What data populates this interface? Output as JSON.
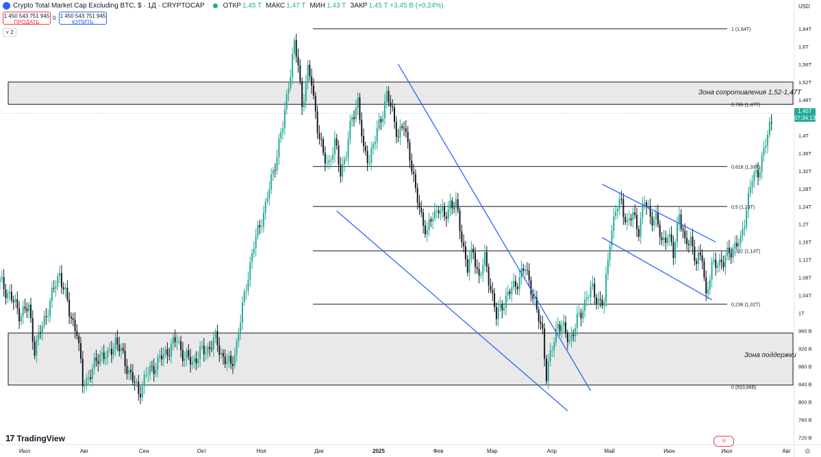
{
  "header": {
    "title": "Crypto Total Market Cap Excluding BTC, $ · 1Д · CRYPTOCAP",
    "ohlc": [
      {
        "key": "ОТКР",
        "value": "1,45 T"
      },
      {
        "key": "МАКС",
        "value": "1,47 T"
      },
      {
        "key": "МИН",
        "value": "1,43 T"
      },
      {
        "key": "ЗАКР",
        "value": "1,45 T +3,45 B (+0,24%)"
      }
    ],
    "sell_price": "1 450 543 751 945",
    "sell_label": "ПРОДАТЬ",
    "spread": "0",
    "buy_price": "1 450 543 751 945",
    "buy_label": "КУПИТЬ",
    "indicator_count": "2",
    "currency": "USD"
  },
  "current_price": {
    "value": "1,45T",
    "countdown": "07:34:13"
  },
  "brand": "TradingView",
  "colors": {
    "up": "#22ab94",
    "down": "#131722",
    "trendline": "#2962ff",
    "fib": "#131722",
    "zone_fill": "#e0e0e0"
  },
  "chart_data": {
    "type": "candlestick",
    "title": "Crypto Total Market Cap Excluding BTC, $ · 1Д · CRYPTOCAP",
    "y_unit": "USD",
    "y_ticks": [
      "1,64T",
      "1,6T",
      "1,56T",
      "1,52T",
      "1,48T",
      "1,44T",
      "1,4T",
      "1,36T",
      "1,32T",
      "1,28T",
      "1,24T",
      "1,2T",
      "1,16T",
      "1,12T",
      "1,08T",
      "1,04T",
      "1T",
      "960 B",
      "920 B",
      "880 B",
      "840 B",
      "800 B",
      "760 B",
      "720 B"
    ],
    "y_tick_values": [
      1640,
      1600,
      1560,
      1520,
      1480,
      1440,
      1400,
      1360,
      1320,
      1280,
      1240,
      1200,
      1160,
      1120,
      1080,
      1040,
      1000,
      960,
      920,
      880,
      840,
      800,
      760,
      720
    ],
    "x_ticks": [
      "Июл",
      "Авг",
      "Сен",
      "Окт",
      "Ноя",
      "Дек",
      "2025",
      "Фев",
      "Мар",
      "Апр",
      "Май",
      "Июн",
      "Июл",
      "Авг"
    ],
    "x_tick_days": [
      0,
      31,
      62,
      92,
      123,
      153,
      184,
      215,
      243,
      274,
      304,
      335,
      365,
      396
    ],
    "ylim": [
      710,
      1660
    ],
    "xlim": [
      0,
      410
    ],
    "close_series": [
      {
        "day": 0,
        "close": 1070
      },
      {
        "day": 5,
        "close": 1040
      },
      {
        "day": 10,
        "close": 1000
      },
      {
        "day": 15,
        "close": 1010
      },
      {
        "day": 18,
        "close": 920
      },
      {
        "day": 22,
        "close": 970
      },
      {
        "day": 27,
        "close": 1040
      },
      {
        "day": 31,
        "close": 1090
      },
      {
        "day": 33,
        "close": 1060
      },
      {
        "day": 36,
        "close": 1000
      },
      {
        "day": 40,
        "close": 960
      },
      {
        "day": 43,
        "close": 840
      },
      {
        "day": 48,
        "close": 870
      },
      {
        "day": 52,
        "close": 910
      },
      {
        "day": 56,
        "close": 900
      },
      {
        "day": 60,
        "close": 940
      },
      {
        "day": 64,
        "close": 900
      },
      {
        "day": 68,
        "close": 860
      },
      {
        "day": 72,
        "close": 820
      },
      {
        "day": 76,
        "close": 860
      },
      {
        "day": 80,
        "close": 880
      },
      {
        "day": 84,
        "close": 900
      },
      {
        "day": 88,
        "close": 920
      },
      {
        "day": 92,
        "close": 940
      },
      {
        "day": 96,
        "close": 900
      },
      {
        "day": 100,
        "close": 890
      },
      {
        "day": 104,
        "close": 910
      },
      {
        "day": 108,
        "close": 920
      },
      {
        "day": 112,
        "close": 940
      },
      {
        "day": 116,
        "close": 900
      },
      {
        "day": 120,
        "close": 880
      },
      {
        "day": 123,
        "close": 930
      },
      {
        "day": 126,
        "close": 1010
      },
      {
        "day": 129,
        "close": 1090
      },
      {
        "day": 132,
        "close": 1150
      },
      {
        "day": 135,
        "close": 1200
      },
      {
        "day": 138,
        "close": 1240
      },
      {
        "day": 141,
        "close": 1300
      },
      {
        "day": 144,
        "close": 1360
      },
      {
        "day": 147,
        "close": 1420
      },
      {
        "day": 150,
        "close": 1520
      },
      {
        "day": 153,
        "close": 1600
      },
      {
        "day": 155,
        "close": 1560
      },
      {
        "day": 157,
        "close": 1470
      },
      {
        "day": 160,
        "close": 1540
      },
      {
        "day": 162,
        "close": 1520
      },
      {
        "day": 165,
        "close": 1420
      },
      {
        "day": 168,
        "close": 1350
      },
      {
        "day": 171,
        "close": 1340
      },
      {
        "day": 174,
        "close": 1380
      },
      {
        "day": 177,
        "close": 1320
      },
      {
        "day": 180,
        "close": 1360
      },
      {
        "day": 183,
        "close": 1440
      },
      {
        "day": 186,
        "close": 1480
      },
      {
        "day": 189,
        "close": 1360
      },
      {
        "day": 192,
        "close": 1350
      },
      {
        "day": 195,
        "close": 1390
      },
      {
        "day": 198,
        "close": 1440
      },
      {
        "day": 201,
        "close": 1490
      },
      {
        "day": 204,
        "close": 1450
      },
      {
        "day": 207,
        "close": 1400
      },
      {
        "day": 210,
        "close": 1420
      },
      {
        "day": 213,
        "close": 1360
      },
      {
        "day": 216,
        "close": 1270
      },
      {
        "day": 219,
        "close": 1220
      },
      {
        "day": 222,
        "close": 1180
      },
      {
        "day": 225,
        "close": 1220
      },
      {
        "day": 228,
        "close": 1240
      },
      {
        "day": 231,
        "close": 1210
      },
      {
        "day": 234,
        "close": 1250
      },
      {
        "day": 237,
        "close": 1240
      },
      {
        "day": 240,
        "close": 1170
      },
      {
        "day": 243,
        "close": 1100
      },
      {
        "day": 246,
        "close": 1140
      },
      {
        "day": 249,
        "close": 1080
      },
      {
        "day": 252,
        "close": 1120
      },
      {
        "day": 255,
        "close": 1060
      },
      {
        "day": 258,
        "close": 990
      },
      {
        "day": 261,
        "close": 1020
      },
      {
        "day": 264,
        "close": 1040
      },
      {
        "day": 267,
        "close": 1060
      },
      {
        "day": 270,
        "close": 1080
      },
      {
        "day": 273,
        "close": 1100
      },
      {
        "day": 276,
        "close": 1060
      },
      {
        "day": 279,
        "close": 1000
      },
      {
        "day": 282,
        "close": 960
      },
      {
        "day": 284,
        "close": 860
      },
      {
        "day": 287,
        "close": 920
      },
      {
        "day": 290,
        "close": 980
      },
      {
        "day": 293,
        "close": 960
      },
      {
        "day": 296,
        "close": 940
      },
      {
        "day": 299,
        "close": 970
      },
      {
        "day": 302,
        "close": 1000
      },
      {
        "day": 305,
        "close": 1040
      },
      {
        "day": 308,
        "close": 1050
      },
      {
        "day": 311,
        "close": 1030
      },
      {
        "day": 314,
        "close": 1020
      },
      {
        "day": 317,
        "close": 1170
      },
      {
        "day": 320,
        "close": 1230
      },
      {
        "day": 323,
        "close": 1250
      },
      {
        "day": 326,
        "close": 1200
      },
      {
        "day": 329,
        "close": 1220
      },
      {
        "day": 332,
        "close": 1190
      },
      {
        "day": 335,
        "close": 1250
      },
      {
        "day": 338,
        "close": 1220
      },
      {
        "day": 341,
        "close": 1210
      },
      {
        "day": 344,
        "close": 1160
      },
      {
        "day": 347,
        "close": 1180
      },
      {
        "day": 350,
        "close": 1130
      },
      {
        "day": 353,
        "close": 1230
      },
      {
        "day": 356,
        "close": 1150
      },
      {
        "day": 359,
        "close": 1170
      },
      {
        "day": 362,
        "close": 1110
      },
      {
        "day": 365,
        "close": 1130
      },
      {
        "day": 367,
        "close": 1040
      },
      {
        "day": 370,
        "close": 1100
      },
      {
        "day": 373,
        "close": 1120
      },
      {
        "day": 376,
        "close": 1110
      },
      {
        "day": 379,
        "close": 1140
      },
      {
        "day": 382,
        "close": 1150
      },
      {
        "day": 385,
        "close": 1160
      },
      {
        "day": 388,
        "close": 1240
      },
      {
        "day": 391,
        "close": 1300
      },
      {
        "day": 394,
        "close": 1320
      },
      {
        "day": 397,
        "close": 1360
      },
      {
        "day": 400,
        "close": 1420
      },
      {
        "day": 402,
        "close": 1450
      }
    ],
    "fibonacci": [
      {
        "label": "1 (1,64T)",
        "value": 1640
      },
      {
        "label": "0,786 (1,47T)",
        "value": 1470
      },
      {
        "label": "0,618 (1,33T)",
        "value": 1330
      },
      {
        "label": "0,5 (1,24T)",
        "value": 1240
      },
      {
        "label": "0,382 (1,14T)",
        "value": 1140
      },
      {
        "label": "0,236 (1,02T)",
        "value": 1020
      },
      {
        "label": "0 (833,86B)",
        "value": 833.86
      }
    ],
    "zones": [
      {
        "label": "Зона сопротивления 1,52-1,47Т",
        "from": 1470,
        "to": 1520
      },
      {
        "label": "Зона поддержки",
        "from": 838,
        "to": 955
      }
    ],
    "trendlines": [
      {
        "from": [
          207,
          1560
        ],
        "to": [
          307,
          825
        ]
      },
      {
        "from": [
          175,
          1230
        ],
        "to": [
          295,
          780
        ]
      },
      {
        "from": [
          313,
          1290
        ],
        "to": [
          372,
          1160
        ]
      },
      {
        "from": [
          313,
          1170
        ],
        "to": [
          370,
          1030
        ]
      }
    ],
    "last_value": 1450
  }
}
